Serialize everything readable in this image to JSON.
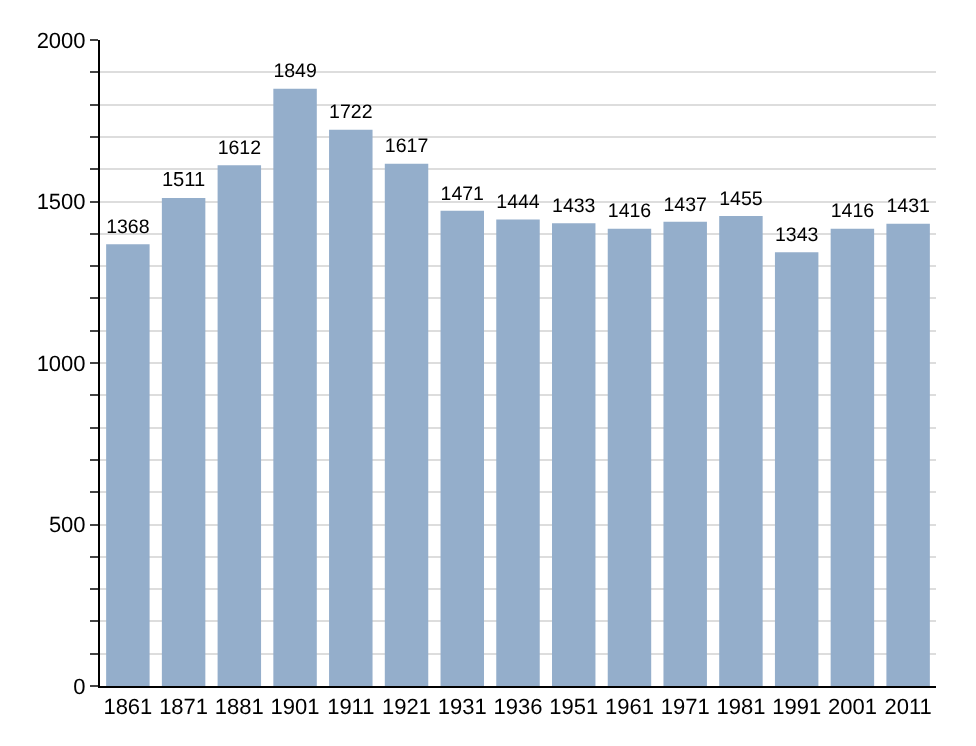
{
  "chart_data": {
    "type": "bar",
    "categories": [
      "1861",
      "1871",
      "1881",
      "1901",
      "1911",
      "1921",
      "1931",
      "1936",
      "1951",
      "1961",
      "1971",
      "1981",
      "1991",
      "2001",
      "2011"
    ],
    "values": [
      1368,
      1511,
      1612,
      1849,
      1722,
      1617,
      1471,
      1444,
      1433,
      1416,
      1437,
      1455,
      1343,
      1416,
      1431
    ],
    "color": "#94aecb",
    "data_labels": true,
    "ylim": [
      0,
      2000
    ],
    "yticks": [
      0,
      {
        "value": 100,
        "label": null
      },
      {
        "value": 200,
        "label": null
      },
      {
        "value": 300,
        "label": null
      },
      {
        "value": 400,
        "label": null
      },
      500,
      {
        "value": 600,
        "label": null
      },
      {
        "value": 700,
        "label": null
      },
      {
        "value": 800,
        "label": null
      },
      {
        "value": 900,
        "label": null
      },
      1000,
      {
        "value": 1100,
        "label": null
      },
      {
        "value": 1200,
        "label": null
      },
      {
        "value": 1300,
        "label": null
      },
      {
        "value": 1400,
        "label": null
      },
      1500,
      {
        "value": 1600,
        "label": null
      },
      {
        "value": 1700,
        "label": null
      },
      {
        "value": 1800,
        "label": null
      },
      {
        "value": 1900,
        "label": null
      },
      2000
    ],
    "grid": "y"
  }
}
